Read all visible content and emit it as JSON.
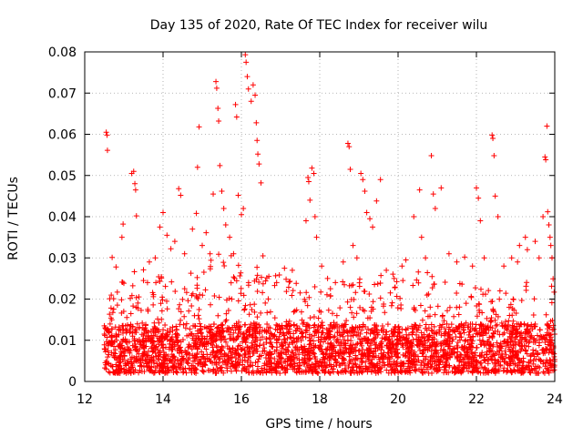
{
  "chart_data": {
    "type": "scatter",
    "title": "Day 135 of 2020, Rate Of TEC Index for receiver wilu",
    "xlabel": "GPS time / hours",
    "ylabel": "ROTI / TECUs",
    "xlim": [
      12,
      24
    ],
    "ylim": [
      0,
      0.08
    ],
    "xticks": [
      "12",
      "14",
      "16",
      "18",
      "20",
      "22",
      "24"
    ],
    "yticks": [
      "0",
      "0.01",
      "0.02",
      "0.03",
      "0.04",
      "0.05",
      "0.06",
      "0.07",
      "0.08"
    ],
    "grid": true,
    "marker": "plus",
    "color": "#ff0000",
    "series": [
      {
        "name": "ROTI",
        "points": [
          [
            12.55,
            0.0605
          ],
          [
            12.57,
            0.0598
          ],
          [
            12.58,
            0.0561
          ],
          [
            12.7,
            0.0301
          ],
          [
            12.8,
            0.0278
          ],
          [
            12.95,
            0.035
          ],
          [
            12.98,
            0.0382
          ],
          [
            13.2,
            0.0505
          ],
          [
            13.25,
            0.051
          ],
          [
            13.28,
            0.048
          ],
          [
            13.3,
            0.0465
          ],
          [
            13.32,
            0.0402
          ],
          [
            13.5,
            0.0271
          ],
          [
            13.65,
            0.029
          ],
          [
            13.8,
            0.03
          ],
          [
            13.92,
            0.0375
          ],
          [
            14.0,
            0.041
          ],
          [
            14.1,
            0.0355
          ],
          [
            14.2,
            0.0322
          ],
          [
            14.3,
            0.034
          ],
          [
            14.4,
            0.0468
          ],
          [
            14.45,
            0.0452
          ],
          [
            14.55,
            0.031
          ],
          [
            14.75,
            0.037
          ],
          [
            14.85,
            0.0408
          ],
          [
            14.88,
            0.052
          ],
          [
            14.92,
            0.0618
          ],
          [
            15.0,
            0.033
          ],
          [
            15.1,
            0.0361
          ],
          [
            15.2,
            0.031
          ],
          [
            15.28,
            0.0455
          ],
          [
            15.35,
            0.0728
          ],
          [
            15.37,
            0.0712
          ],
          [
            15.4,
            0.0663
          ],
          [
            15.42,
            0.0632
          ],
          [
            15.45,
            0.0524
          ],
          [
            15.5,
            0.0462
          ],
          [
            15.55,
            0.042
          ],
          [
            15.6,
            0.038
          ],
          [
            15.7,
            0.035
          ],
          [
            15.8,
            0.031
          ],
          [
            15.85,
            0.0672
          ],
          [
            15.88,
            0.0642
          ],
          [
            15.92,
            0.0452
          ],
          [
            16.0,
            0.0405
          ],
          [
            16.05,
            0.042
          ],
          [
            16.1,
            0.0793
          ],
          [
            16.12,
            0.0775
          ],
          [
            16.15,
            0.074
          ],
          [
            16.18,
            0.071
          ],
          [
            16.25,
            0.068
          ],
          [
            16.3,
            0.072
          ],
          [
            16.35,
            0.0695
          ],
          [
            16.38,
            0.0628
          ],
          [
            16.4,
            0.0585
          ],
          [
            16.42,
            0.0552
          ],
          [
            16.45,
            0.0528
          ],
          [
            16.5,
            0.0482
          ],
          [
            16.55,
            0.0305
          ],
          [
            16.7,
            0.0255
          ],
          [
            16.9,
            0.024
          ],
          [
            17.1,
            0.0275
          ],
          [
            17.3,
            0.027
          ],
          [
            17.4,
            0.0238
          ],
          [
            17.65,
            0.039
          ],
          [
            17.7,
            0.0495
          ],
          [
            17.72,
            0.0485
          ],
          [
            17.75,
            0.044
          ],
          [
            17.8,
            0.0518
          ],
          [
            17.85,
            0.0505
          ],
          [
            17.88,
            0.04
          ],
          [
            17.92,
            0.035
          ],
          [
            18.05,
            0.028
          ],
          [
            18.2,
            0.025
          ],
          [
            18.4,
            0.024
          ],
          [
            18.6,
            0.029
          ],
          [
            18.72,
            0.0578
          ],
          [
            18.75,
            0.057
          ],
          [
            18.78,
            0.0515
          ],
          [
            18.85,
            0.033
          ],
          [
            18.95,
            0.03
          ],
          [
            19.05,
            0.0505
          ],
          [
            19.1,
            0.049
          ],
          [
            19.15,
            0.0462
          ],
          [
            19.2,
            0.041
          ],
          [
            19.28,
            0.0395
          ],
          [
            19.35,
            0.0375
          ],
          [
            19.45,
            0.0438
          ],
          [
            19.55,
            0.049
          ],
          [
            19.7,
            0.027
          ],
          [
            19.9,
            0.025
          ],
          [
            20.1,
            0.028
          ],
          [
            20.2,
            0.0295
          ],
          [
            20.4,
            0.04
          ],
          [
            20.55,
            0.0465
          ],
          [
            20.6,
            0.035
          ],
          [
            20.7,
            0.03
          ],
          [
            20.85,
            0.0548
          ],
          [
            20.9,
            0.0455
          ],
          [
            20.95,
            0.042
          ],
          [
            21.1,
            0.047
          ],
          [
            21.3,
            0.031
          ],
          [
            21.5,
            0.029
          ],
          [
            21.7,
            0.0302
          ],
          [
            21.9,
            0.028
          ],
          [
            22.0,
            0.047
          ],
          [
            22.05,
            0.0445
          ],
          [
            22.1,
            0.039
          ],
          [
            22.2,
            0.03
          ],
          [
            22.4,
            0.0598
          ],
          [
            22.42,
            0.059
          ],
          [
            22.45,
            0.0548
          ],
          [
            22.48,
            0.045
          ],
          [
            22.55,
            0.04
          ],
          [
            22.7,
            0.028
          ],
          [
            22.9,
            0.03
          ],
          [
            23.05,
            0.029
          ],
          [
            23.1,
            0.033
          ],
          [
            23.25,
            0.035
          ],
          [
            23.3,
            0.032
          ],
          [
            23.5,
            0.034
          ],
          [
            23.6,
            0.03
          ],
          [
            23.7,
            0.04
          ],
          [
            23.75,
            0.0545
          ],
          [
            23.77,
            0.0538
          ],
          [
            23.8,
            0.062
          ],
          [
            23.82,
            0.0412
          ],
          [
            23.85,
            0.038
          ],
          [
            23.88,
            0.035
          ],
          [
            23.9,
            0.033
          ],
          [
            23.93,
            0.03
          ]
        ],
        "dense_band": {
          "x_range": [
            12.5,
            24
          ],
          "baseline_range": [
            0.002,
            0.014
          ],
          "upper_envelope": [
            [
              12.5,
              0.018
            ],
            [
              12.7,
              0.023
            ],
            [
              13.0,
              0.027
            ],
            [
              13.3,
              0.027
            ],
            [
              13.6,
              0.024
            ],
            [
              14.0,
              0.026
            ],
            [
              14.4,
              0.027
            ],
            [
              14.8,
              0.028
            ],
            [
              15.2,
              0.03
            ],
            [
              15.5,
              0.033
            ],
            [
              15.8,
              0.03
            ],
            [
              16.2,
              0.03
            ],
            [
              16.6,
              0.028
            ],
            [
              17.0,
              0.026
            ],
            [
              17.5,
              0.024
            ],
            [
              18.0,
              0.023
            ],
            [
              18.5,
              0.024
            ],
            [
              19.0,
              0.028
            ],
            [
              19.5,
              0.027
            ],
            [
              20.0,
              0.026
            ],
            [
              20.5,
              0.027
            ],
            [
              21.0,
              0.026
            ],
            [
              21.5,
              0.024
            ],
            [
              22.0,
              0.024
            ],
            [
              22.5,
              0.022
            ],
            [
              23.0,
              0.022
            ],
            [
              23.5,
              0.026
            ],
            [
              23.9,
              0.025
            ]
          ]
        }
      }
    ]
  }
}
